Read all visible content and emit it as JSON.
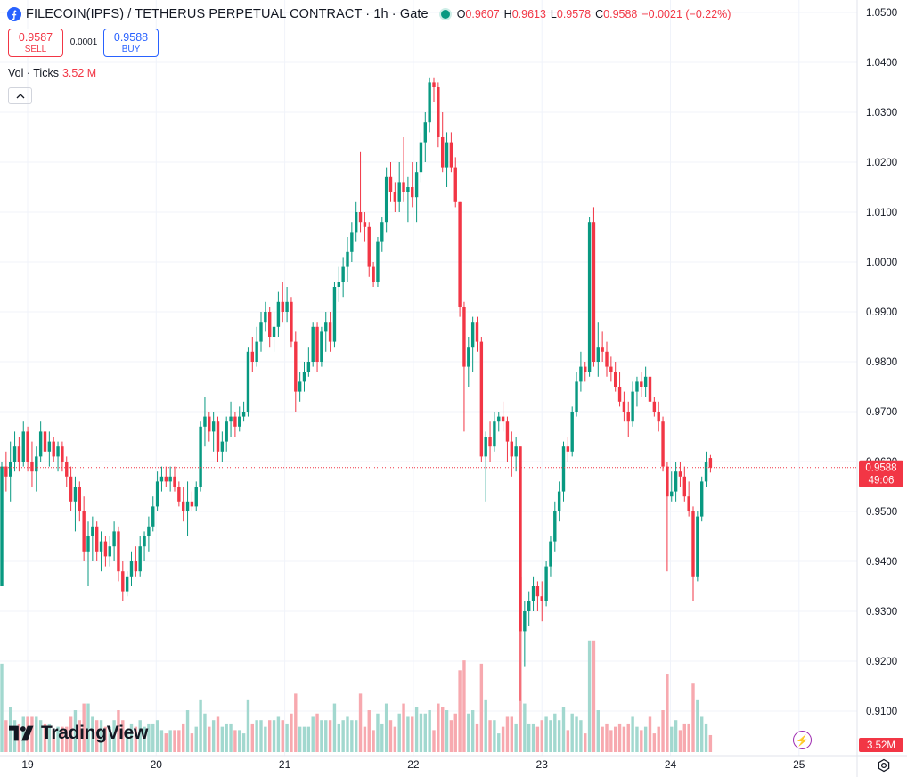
{
  "header": {
    "symbol_icon": "filecoin-icon",
    "symbol_title": "FILECOIN(IPFS) / TETHERUS PERPETUAL CONTRACT · 1h · Gate",
    "ohlc": {
      "o_label": "O",
      "o_value": "0.9607",
      "h_label": "H",
      "h_value": "0.9613",
      "l_label": "L",
      "l_value": "0.9578",
      "c_label": "C",
      "c_value": "0.9588",
      "change": "−0.0021 (−0.22%)"
    }
  },
  "trade": {
    "sell_price": "0.9587",
    "sell_label": "SELL",
    "spread": "0.0001",
    "buy_price": "0.9588",
    "buy_label": "BUY"
  },
  "volume_legend": {
    "label": "Vol · Ticks",
    "value": "3.52 M"
  },
  "branding": {
    "logo_text": "TradingView"
  },
  "price_axis": {
    "ticks": [
      "1.0500",
      "1.0400",
      "1.0300",
      "1.0200",
      "1.0100",
      "1.0000",
      "0.9900",
      "0.9800",
      "0.9700",
      "0.9600",
      "0.9500",
      "0.9400",
      "0.9300",
      "0.9200",
      "0.9100"
    ],
    "last_price_label": "0.9588",
    "countdown_label": "49:06",
    "volume_label": "3.52M"
  },
  "time_axis": {
    "ticks": [
      "19",
      "20",
      "21",
      "22",
      "23",
      "24",
      "25"
    ]
  },
  "colors": {
    "up": "#089981",
    "down": "#f23645",
    "accent": "#2962ff",
    "grid": "#f0f3fa"
  },
  "chart_data": {
    "type": "candlestick",
    "interval": "1h",
    "ylim": [
      0.905,
      1.052
    ],
    "x_range": [
      "19",
      "25"
    ],
    "candles": [
      [
        0.935,
        0.96,
        0.935,
        0.959
      ],
      [
        0.959,
        0.962,
        0.954,
        0.957
      ],
      [
        0.957,
        0.964,
        0.952,
        0.96
      ],
      [
        0.96,
        0.966,
        0.958,
        0.963
      ],
      [
        0.963,
        0.965,
        0.958,
        0.96
      ],
      [
        0.96,
        0.968,
        0.959,
        0.966
      ],
      [
        0.966,
        0.967,
        0.958,
        0.96
      ],
      [
        0.96,
        0.964,
        0.955,
        0.958
      ],
      [
        0.958,
        0.963,
        0.954,
        0.961
      ],
      [
        0.961,
        0.968,
        0.96,
        0.966
      ],
      [
        0.966,
        0.967,
        0.96,
        0.962
      ],
      [
        0.962,
        0.966,
        0.959,
        0.964
      ],
      [
        0.964,
        0.965,
        0.96,
        0.961
      ],
      [
        0.961,
        0.964,
        0.958,
        0.963
      ],
      [
        0.963,
        0.964,
        0.958,
        0.96
      ],
      [
        0.96,
        0.961,
        0.955,
        0.957
      ],
      [
        0.957,
        0.959,
        0.95,
        0.952
      ],
      [
        0.952,
        0.957,
        0.946,
        0.955
      ],
      [
        0.955,
        0.956,
        0.948,
        0.95
      ],
      [
        0.95,
        0.953,
        0.94,
        0.942
      ],
      [
        0.942,
        0.948,
        0.935,
        0.945
      ],
      [
        0.945,
        0.949,
        0.94,
        0.947
      ],
      [
        0.947,
        0.948,
        0.94,
        0.942
      ],
      [
        0.942,
        0.946,
        0.938,
        0.944
      ],
      [
        0.944,
        0.945,
        0.939,
        0.941
      ],
      [
        0.941,
        0.945,
        0.939,
        0.943
      ],
      [
        0.943,
        0.948,
        0.94,
        0.946
      ],
      [
        0.946,
        0.947,
        0.936,
        0.938
      ],
      [
        0.938,
        0.94,
        0.932,
        0.934
      ],
      [
        0.934,
        0.938,
        0.933,
        0.937
      ],
      [
        0.937,
        0.942,
        0.935,
        0.94
      ],
      [
        0.94,
        0.943,
        0.937,
        0.938
      ],
      [
        0.938,
        0.945,
        0.937,
        0.943
      ],
      [
        0.943,
        0.946,
        0.94,
        0.945
      ],
      [
        0.945,
        0.949,
        0.942,
        0.947
      ],
      [
        0.947,
        0.953,
        0.946,
        0.951
      ],
      [
        0.951,
        0.958,
        0.95,
        0.956
      ],
      [
        0.956,
        0.959,
        0.954,
        0.957
      ],
      [
        0.957,
        0.959,
        0.955,
        0.956
      ],
      [
        0.956,
        0.959,
        0.954,
        0.957
      ],
      [
        0.957,
        0.959,
        0.954,
        0.955
      ],
      [
        0.955,
        0.956,
        0.951,
        0.952
      ],
      [
        0.952,
        0.955,
        0.948,
        0.95
      ],
      [
        0.95,
        0.956,
        0.945,
        0.952
      ],
      [
        0.952,
        0.954,
        0.95,
        0.951
      ],
      [
        0.951,
        0.956,
        0.95,
        0.955
      ],
      [
        0.955,
        0.968,
        0.954,
        0.967
      ],
      [
        0.967,
        0.973,
        0.963,
        0.969
      ],
      [
        0.969,
        0.97,
        0.964,
        0.966
      ],
      [
        0.966,
        0.97,
        0.962,
        0.968
      ],
      [
        0.968,
        0.969,
        0.96,
        0.962
      ],
      [
        0.962,
        0.966,
        0.96,
        0.964
      ],
      [
        0.964,
        0.969,
        0.962,
        0.968
      ],
      [
        0.968,
        0.972,
        0.965,
        0.969
      ],
      [
        0.969,
        0.97,
        0.965,
        0.967
      ],
      [
        0.967,
        0.971,
        0.966,
        0.969
      ],
      [
        0.969,
        0.972,
        0.968,
        0.97
      ],
      [
        0.97,
        0.983,
        0.969,
        0.982
      ],
      [
        0.982,
        0.985,
        0.978,
        0.98
      ],
      [
        0.98,
        0.987,
        0.979,
        0.984
      ],
      [
        0.984,
        0.99,
        0.982,
        0.988
      ],
      [
        0.988,
        0.992,
        0.986,
        0.99
      ],
      [
        0.99,
        0.991,
        0.983,
        0.985
      ],
      [
        0.985,
        0.99,
        0.982,
        0.987
      ],
      [
        0.987,
        0.994,
        0.985,
        0.992
      ],
      [
        0.992,
        0.996,
        0.988,
        0.99
      ],
      [
        0.99,
        0.995,
        0.988,
        0.992
      ],
      [
        0.992,
        0.993,
        0.983,
        0.984
      ],
      [
        0.984,
        0.986,
        0.97,
        0.974
      ],
      [
        0.974,
        0.978,
        0.972,
        0.976
      ],
      [
        0.976,
        0.98,
        0.974,
        0.978
      ],
      [
        0.978,
        0.983,
        0.977,
        0.98
      ],
      [
        0.98,
        0.988,
        0.979,
        0.987
      ],
      [
        0.987,
        0.988,
        0.978,
        0.98
      ],
      [
        0.98,
        0.987,
        0.979,
        0.986
      ],
      [
        0.986,
        0.99,
        0.982,
        0.988
      ],
      [
        0.988,
        0.99,
        0.982,
        0.984
      ],
      [
        0.984,
        0.996,
        0.983,
        0.995
      ],
      [
        0.995,
        0.999,
        0.992,
        0.996
      ],
      [
        0.996,
        1.001,
        0.993,
        0.999
      ],
      [
        0.999,
        1.005,
        0.996,
        1.002
      ],
      [
        1.002,
        1.008,
        1.0,
        1.006
      ],
      [
        1.006,
        1.012,
        1.004,
        1.01
      ],
      [
        1.01,
        1.022,
        1.006,
        1.008
      ],
      [
        1.008,
        1.01,
        1.004,
        1.007
      ],
      [
        1.007,
        1.008,
        0.997,
        0.999
      ],
      [
        0.999,
        1.0,
        0.995,
        0.996
      ],
      [
        0.996,
        1.005,
        0.995,
        1.004
      ],
      [
        1.004,
        1.009,
        1.002,
        1.008
      ],
      [
        1.008,
        1.019,
        1.006,
        1.017
      ],
      [
        1.017,
        1.02,
        1.012,
        1.014
      ],
      [
        1.014,
        1.016,
        1.01,
        1.012
      ],
      [
        1.012,
        1.02,
        1.01,
        1.016
      ],
      [
        1.016,
        1.025,
        1.012,
        1.014
      ],
      [
        1.014,
        1.017,
        1.008,
        1.015
      ],
      [
        1.015,
        1.02,
        1.011,
        1.013
      ],
      [
        1.013,
        1.02,
        1.008,
        1.018
      ],
      [
        1.018,
        1.026,
        1.016,
        1.024
      ],
      [
        1.024,
        1.03,
        1.02,
        1.028
      ],
      [
        1.028,
        1.037,
        1.026,
        1.036
      ],
      [
        1.036,
        1.037,
        1.032,
        1.035
      ],
      [
        1.035,
        1.036,
        1.023,
        1.025
      ],
      [
        1.025,
        1.03,
        1.018,
        1.019
      ],
      [
        1.019,
        1.026,
        1.015,
        1.024
      ],
      [
        1.024,
        1.026,
        1.018,
        1.019
      ],
      [
        1.019,
        1.021,
        1.011,
        1.012
      ],
      [
        1.012,
        1.012,
        0.989,
        0.991
      ],
      [
        0.991,
        0.992,
        0.966,
        0.979
      ],
      [
        0.979,
        0.985,
        0.975,
        0.983
      ],
      [
        0.983,
        0.989,
        0.978,
        0.988
      ],
      [
        0.988,
        0.989,
        0.982,
        0.984
      ],
      [
        0.984,
        0.985,
        0.96,
        0.961
      ],
      [
        0.961,
        0.966,
        0.952,
        0.965
      ],
      [
        0.965,
        0.968,
        0.96,
        0.963
      ],
      [
        0.963,
        0.97,
        0.962,
        0.968
      ],
      [
        0.968,
        0.97,
        0.966,
        0.969
      ],
      [
        0.969,
        0.972,
        0.966,
        0.968
      ],
      [
        0.968,
        0.969,
        0.96,
        0.964
      ],
      [
        0.964,
        0.966,
        0.957,
        0.961
      ],
      [
        0.961,
        0.965,
        0.958,
        0.963
      ],
      [
        0.963,
        0.963,
        0.912,
        0.926
      ],
      [
        0.926,
        0.932,
        0.919,
        0.93
      ],
      [
        0.93,
        0.934,
        0.927,
        0.932
      ],
      [
        0.932,
        0.937,
        0.93,
        0.935
      ],
      [
        0.935,
        0.936,
        0.93,
        0.933
      ],
      [
        0.933,
        0.936,
        0.928,
        0.932
      ],
      [
        0.932,
        0.94,
        0.931,
        0.939
      ],
      [
        0.939,
        0.945,
        0.937,
        0.944
      ],
      [
        0.944,
        0.952,
        0.942,
        0.95
      ],
      [
        0.95,
        0.956,
        0.948,
        0.954
      ],
      [
        0.954,
        0.964,
        0.952,
        0.963
      ],
      [
        0.963,
        0.965,
        0.96,
        0.962
      ],
      [
        0.962,
        0.971,
        0.961,
        0.97
      ],
      [
        0.97,
        0.978,
        0.969,
        0.976
      ],
      [
        0.976,
        0.982,
        0.974,
        0.979
      ],
      [
        0.979,
        0.98,
        0.976,
        0.978
      ],
      [
        0.978,
        1.009,
        0.977,
        1.008
      ],
      [
        1.008,
        1.011,
        0.979,
        0.98
      ],
      [
        0.98,
        0.988,
        0.977,
        0.983
      ],
      [
        0.983,
        0.986,
        0.98,
        0.982
      ],
      [
        0.982,
        0.984,
        0.977,
        0.979
      ],
      [
        0.979,
        0.981,
        0.976,
        0.978
      ],
      [
        0.978,
        0.98,
        0.974,
        0.975
      ],
      [
        0.975,
        0.978,
        0.971,
        0.972
      ],
      [
        0.972,
        0.974,
        0.968,
        0.97
      ],
      [
        0.97,
        0.972,
        0.965,
        0.968
      ],
      [
        0.968,
        0.976,
        0.967,
        0.974
      ],
      [
        0.974,
        0.977,
        0.971,
        0.976
      ],
      [
        0.976,
        0.978,
        0.973,
        0.975
      ],
      [
        0.975,
        0.979,
        0.973,
        0.977
      ],
      [
        0.977,
        0.98,
        0.971,
        0.972
      ],
      [
        0.972,
        0.973,
        0.969,
        0.97
      ],
      [
        0.97,
        0.972,
        0.966,
        0.968
      ],
      [
        0.968,
        0.969,
        0.958,
        0.959
      ],
      [
        0.959,
        0.96,
        0.938,
        0.953
      ],
      [
        0.953,
        0.958,
        0.952,
        0.954
      ],
      [
        0.954,
        0.96,
        0.952,
        0.958
      ],
      [
        0.958,
        0.96,
        0.955,
        0.957
      ],
      [
        0.957,
        0.959,
        0.952,
        0.953
      ],
      [
        0.953,
        0.956,
        0.949,
        0.95
      ],
      [
        0.95,
        0.951,
        0.932,
        0.937
      ],
      [
        0.937,
        0.95,
        0.936,
        0.949
      ],
      [
        0.949,
        0.957,
        0.948,
        0.956
      ],
      [
        0.956,
        0.962,
        0.955,
        0.96
      ],
      [
        0.9607,
        0.9613,
        0.9578,
        0.9588
      ]
    ],
    "volume_scale": "relative"
  }
}
